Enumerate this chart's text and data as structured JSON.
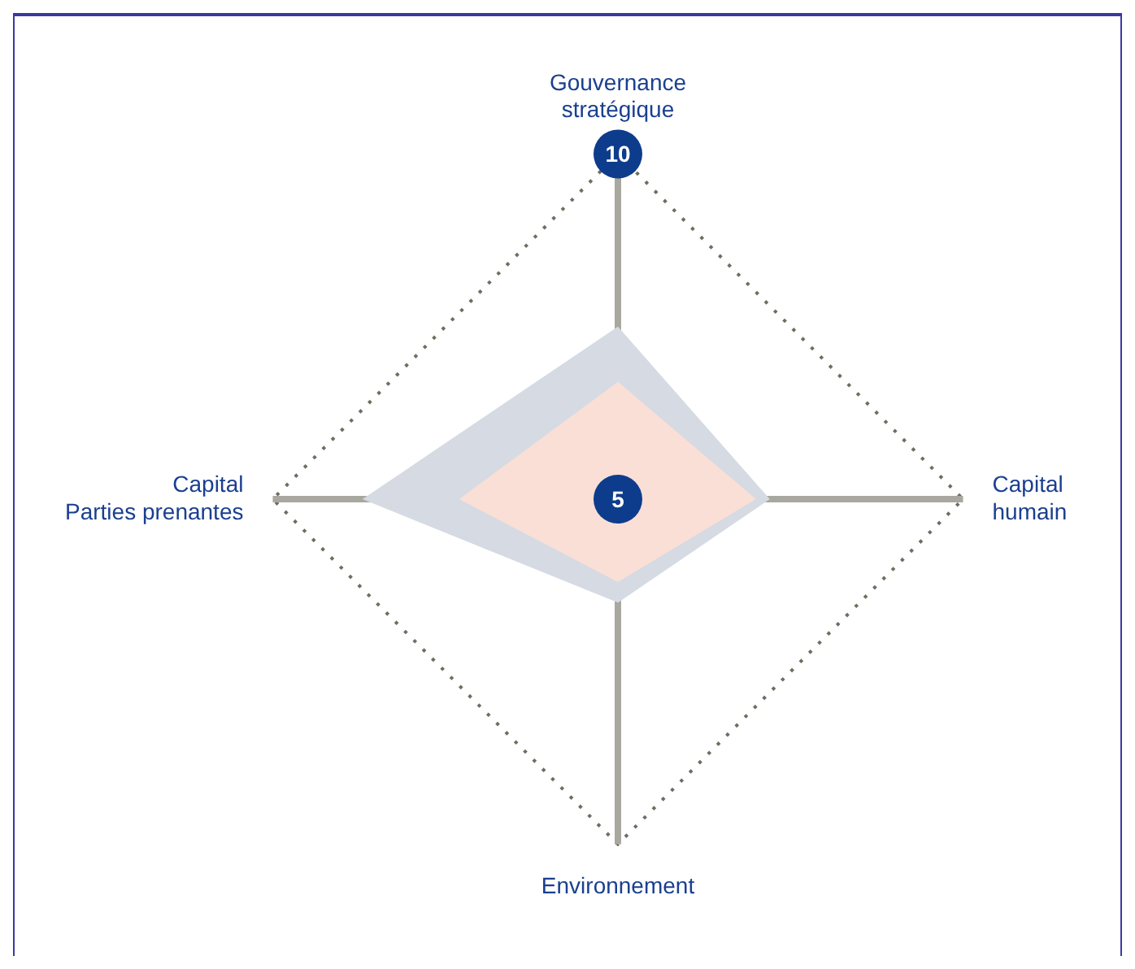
{
  "chart_data": {
    "type": "radar",
    "categories": [
      "Gouvernance stratégique",
      "Capital humain",
      "Environnement",
      "Capital Parties prenantes"
    ],
    "series": [
      {
        "color": "#d5dae3",
        "values": [
          7.5,
          7.2,
          6.5,
          8.7
        ]
      },
      {
        "color": "#fadfd6",
        "values": [
          6.7,
          7.0,
          6.2,
          7.3
        ]
      }
    ],
    "ylim": [
      5,
      10
    ],
    "yticks": [
      5,
      10
    ],
    "grid": true,
    "legend": false
  }
}
